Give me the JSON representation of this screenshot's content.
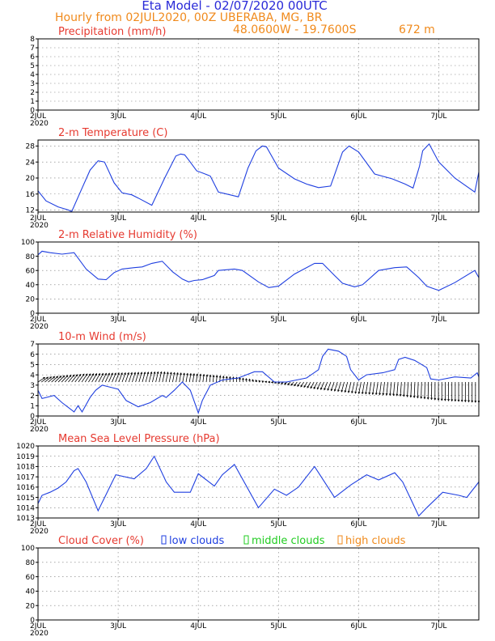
{
  "header": {
    "title": "Eta Model - 02/07/2020 00UTC",
    "subtitle": "Hourly from 02JUL2020, 00Z  UBERABA, MG, BR",
    "coords": "48.0600W - 19.7600S",
    "elevation": "672  m"
  },
  "colors": {
    "title": "#2a2ad8",
    "subtitle": "#f08a1c",
    "panel_title": "#e63a30",
    "series": "#1f3fe0",
    "low_clouds": "#1f3fe0",
    "middle_clouds": "#22cc22",
    "high_clouds": "#f08a1c"
  },
  "x_axis": {
    "first_label_line2": "2020",
    "ticks": [
      {
        "day": 0,
        "label": "2JUL"
      },
      {
        "day": 1,
        "label": "3JUL"
      },
      {
        "day": 2,
        "label": "4JUL"
      },
      {
        "day": 3,
        "label": "5JUL"
      },
      {
        "day": 4,
        "label": "6JUL"
      },
      {
        "day": 5,
        "label": "7JUL"
      }
    ],
    "xlim": [
      0,
      5.5
    ]
  },
  "chart_data": [
    {
      "id": "precip",
      "type": "line",
      "title": "Precipitation (mm/h)",
      "ylim": [
        0,
        8
      ],
      "yticks": [
        0,
        1,
        2,
        3,
        4,
        5,
        6,
        7,
        8
      ],
      "series": [
        {
          "name": "Precipitation",
          "x": [
            0,
            5.5
          ],
          "values": [
            0,
            0
          ]
        }
      ]
    },
    {
      "id": "temp",
      "type": "line",
      "title": "2-m Temperature (C)",
      "ylim": [
        11.5,
        29.5
      ],
      "yticks": [
        12,
        16,
        20,
        24,
        28
      ],
      "series": [
        {
          "name": "Temperature",
          "x": [
            0,
            0.1,
            0.25,
            0.38,
            0.42,
            0.55,
            0.65,
            0.75,
            0.83,
            0.95,
            1.05,
            1.17,
            1.25,
            1.42,
            1.58,
            1.72,
            1.78,
            1.83,
            1.88,
            1.98,
            2.06,
            2.15,
            2.25,
            2.5,
            2.62,
            2.72,
            2.8,
            2.85,
            3.0,
            3.2,
            3.35,
            3.5,
            3.65,
            3.73,
            3.8,
            3.88,
            4.0,
            4.2,
            4.42,
            4.58,
            4.68,
            4.76,
            4.8,
            4.88,
            5.0,
            5.2,
            5.45,
            5.5
          ],
          "values": [
            16.8,
            14.3,
            12.8,
            12,
            11.6,
            17.5,
            22,
            24.3,
            24,
            18.8,
            16.3,
            15.8,
            15,
            13.2,
            20,
            25.5,
            26,
            25.8,
            24.5,
            21.8,
            21.2,
            20.5,
            16.5,
            15.3,
            22.5,
            26.8,
            28,
            27.8,
            22.5,
            19.8,
            18.5,
            17.6,
            18,
            22.5,
            26.5,
            28,
            26.5,
            21,
            19.8,
            18.5,
            17.5,
            23,
            26.8,
            28.5,
            24,
            20,
            16.5,
            21.5
          ]
        }
      ]
    },
    {
      "id": "rh",
      "type": "line",
      "title": "2-m Relative Humidity (%)",
      "ylim": [
        0,
        100
      ],
      "yticks": [
        0,
        20,
        40,
        60,
        80,
        100
      ],
      "series": [
        {
          "name": "Relative Humidity",
          "x": [
            0,
            0.05,
            0.15,
            0.3,
            0.45,
            0.6,
            0.75,
            0.85,
            0.95,
            1.05,
            1.2,
            1.3,
            1.42,
            1.55,
            1.68,
            1.8,
            1.88,
            1.95,
            2.05,
            2.2,
            2.25,
            2.45,
            2.55,
            2.75,
            2.88,
            3.0,
            3.2,
            3.45,
            3.55,
            3.7,
            3.8,
            3.95,
            4.05,
            4.25,
            4.45,
            4.6,
            4.75,
            4.85,
            4.95,
            5.0,
            5.2,
            5.45,
            5.5
          ],
          "values": [
            82,
            87,
            85,
            83,
            85,
            62,
            48,
            47,
            57,
            62,
            64,
            65,
            70,
            73,
            58,
            48,
            44,
            46,
            47,
            53,
            60,
            62,
            60,
            44,
            36,
            38,
            55,
            70,
            70,
            53,
            42,
            37,
            40,
            60,
            64,
            65,
            50,
            38,
            34,
            32,
            43,
            60,
            50
          ]
        }
      ]
    },
    {
      "id": "wind",
      "type": "line",
      "title": "10-m Wind (m/s)",
      "ylim": [
        0,
        7
      ],
      "yticks": [
        0,
        1,
        2,
        3,
        4,
        5,
        6,
        7
      ],
      "series": [
        {
          "name": "Wind speed",
          "x": [
            0,
            0.05,
            0.2,
            0.3,
            0.4,
            0.45,
            0.5,
            0.55,
            0.65,
            0.72,
            0.8,
            0.9,
            1.0,
            1.1,
            1.25,
            1.4,
            1.55,
            1.6,
            1.7,
            1.8,
            1.9,
            2.0,
            2.05,
            2.15,
            2.3,
            2.5,
            2.6,
            2.7,
            2.8,
            2.95,
            3.1,
            3.35,
            3.5,
            3.55,
            3.62,
            3.75,
            3.85,
            3.9,
            4.0,
            4.1,
            4.3,
            4.45,
            4.5,
            4.58,
            4.7,
            4.85,
            4.9,
            5.0,
            5.2,
            5.4,
            5.48,
            5.5
          ],
          "values": [
            2.5,
            1.7,
            2,
            1.3,
            0.7,
            0.4,
            1,
            0.4,
            1.8,
            2.5,
            3,
            2.8,
            2.6,
            1.5,
            0.9,
            1.3,
            2,
            1.8,
            2.5,
            3.3,
            2.5,
            0.3,
            1.5,
            3,
            3.5,
            3.7,
            4,
            4.3,
            4.3,
            3.3,
            3.3,
            3.7,
            4.5,
            5.8,
            6.5,
            6.3,
            5.8,
            4.5,
            3.5,
            4,
            4.2,
            4.5,
            5.5,
            5.7,
            5.4,
            4.7,
            3.6,
            3.5,
            3.8,
            3.7,
            4.2,
            3.8
          ]
        }
      ],
      "arrows": {
        "count": 132,
        "dx": [
          0.6,
          0.5,
          0.3,
          0.2,
          0.1,
          0.0,
          -0.2,
          -0.3,
          -0.2,
          -0.1,
          0.0,
          0.0
        ],
        "dy": [
          0.4,
          0.7,
          0.8,
          0.9,
          0.7,
          0.4,
          -0.1,
          -0.6,
          -1.0,
          -1.2,
          -1.6,
          -1.8
        ]
      }
    },
    {
      "id": "mslp",
      "type": "line",
      "title": "Mean Sea Level Pressure (hPa)",
      "ylim": [
        1013,
        1020
      ],
      "yticks": [
        1013,
        1014,
        1015,
        1016,
        1017,
        1018,
        1019,
        1020
      ],
      "series": [
        {
          "name": "MSLP",
          "x": [
            0,
            0.05,
            0.15,
            0.25,
            0.35,
            0.45,
            0.5,
            0.6,
            0.75,
            0.97,
            1.2,
            1.35,
            1.45,
            1.6,
            1.7,
            1.9,
            2.0,
            2.2,
            2.3,
            2.45,
            2.75,
            2.95,
            3.1,
            3.25,
            3.45,
            3.7,
            3.9,
            4.1,
            4.25,
            4.45,
            4.55,
            4.75,
            4.85,
            5.05,
            5.25,
            5.35,
            5.5
          ],
          "values": [
            1014.4,
            1015.2,
            1015.5,
            1015.9,
            1016.5,
            1017.6,
            1017.8,
            1016.5,
            1013.7,
            1017.2,
            1016.8,
            1017.8,
            1019,
            1016.5,
            1015.5,
            1015.5,
            1017.3,
            1016.1,
            1017.2,
            1018.2,
            1014,
            1015.8,
            1015.2,
            1016,
            1018,
            1015,
            1016.2,
            1017.2,
            1016.7,
            1017.4,
            1016.5,
            1013.2,
            1014,
            1015.5,
            1015.2,
            1015,
            1016.5
          ]
        }
      ]
    },
    {
      "id": "cloud",
      "type": "line",
      "title": "Cloud Cover (%)",
      "ylim": [
        0,
        100
      ],
      "yticks": [
        0,
        20,
        40,
        60,
        80,
        100
      ],
      "legend": {
        "low": "low clouds",
        "middle": "middle clouds",
        "high": "high clouds"
      },
      "series": [
        {
          "name": "low clouds",
          "x": [
            0,
            5.5
          ],
          "values": [
            0,
            0
          ]
        },
        {
          "name": "middle clouds",
          "x": [
            0,
            5.5
          ],
          "values": [
            0,
            0
          ]
        },
        {
          "name": "high clouds",
          "x": [
            0,
            5.5
          ],
          "values": [
            0,
            0
          ]
        }
      ]
    }
  ]
}
